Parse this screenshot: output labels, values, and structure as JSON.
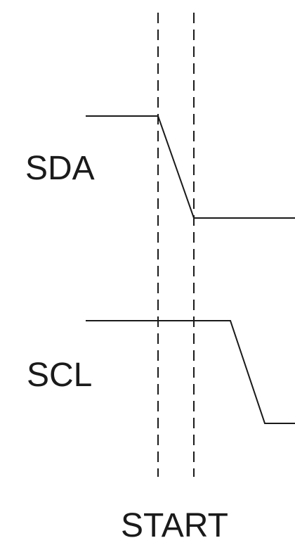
{
  "signals": {
    "sda": {
      "label": "SDA"
    },
    "scl": {
      "label": "SCL"
    }
  },
  "event": {
    "label": "START"
  },
  "colors": {
    "line": "#1a1a1a",
    "background": "#ffffff"
  }
}
